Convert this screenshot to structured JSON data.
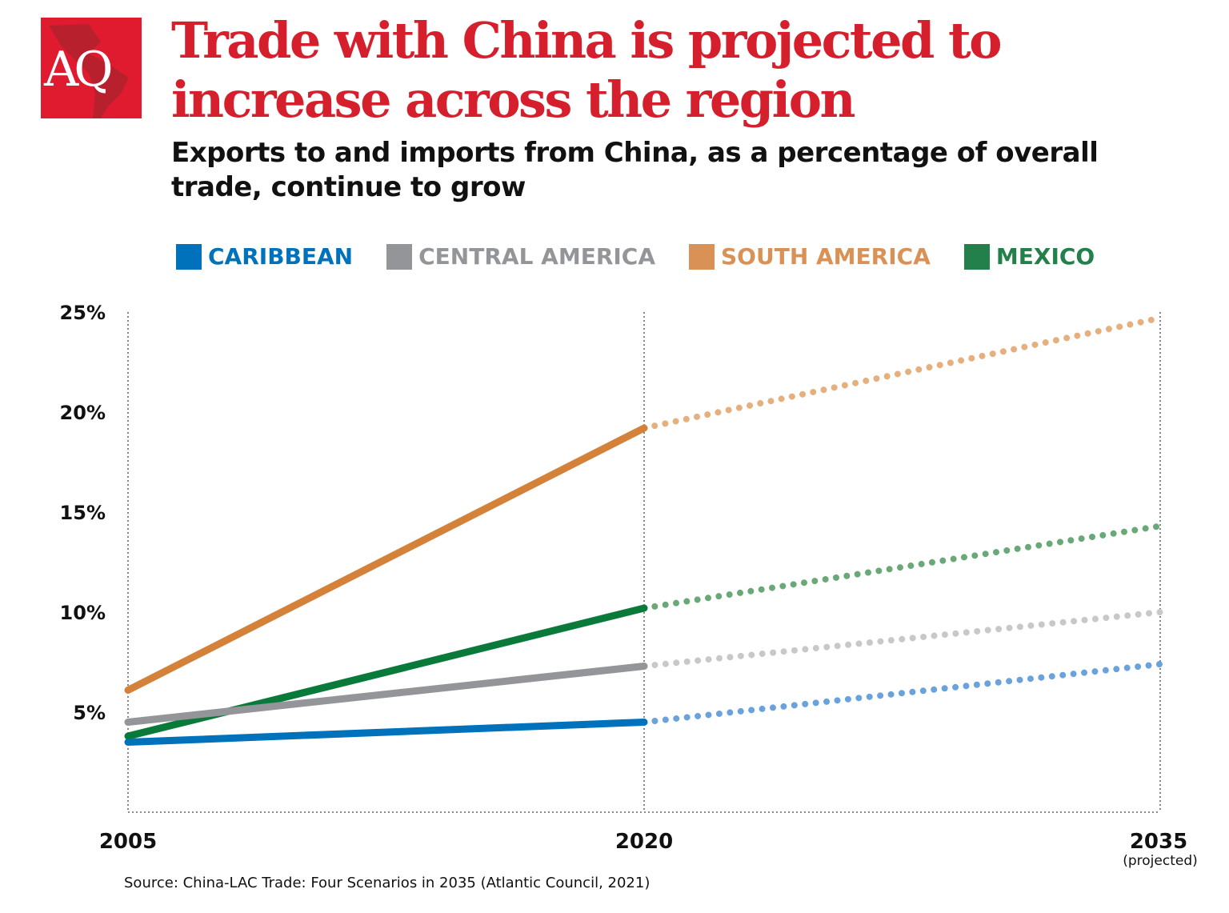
{
  "logo": {
    "text": "AQ",
    "color": "#e11b2f"
  },
  "title": "Trade with China is projected to increase across the region",
  "subtitle": "Exports to and imports from China, as a percentage of overall trade, continue to grow",
  "source": "Source: China-LAC Trade: Four Scenarios in 2035 (Atlantic Council, 2021)",
  "chart_data": {
    "type": "line",
    "x": [
      2005,
      2020,
      2035
    ],
    "x_tick_labels": [
      "2005",
      "2020",
      "2035"
    ],
    "x_tick_sublabels": [
      "",
      "",
      "(projected)"
    ],
    "projected_from": 2020,
    "ylim": [
      0,
      25
    ],
    "y_ticks": [
      5,
      10,
      15,
      20,
      25
    ],
    "y_tick_labels": [
      "5%",
      "10%",
      "15%",
      "20%",
      "25%"
    ],
    "legend_placement": "top",
    "series": [
      {
        "name": "CARIBBEAN",
        "values": [
          3.5,
          4.5,
          7.4
        ],
        "color": "#0072bc",
        "projected_color": "#6aa3dc",
        "legend_color": "#0072bc"
      },
      {
        "name": "CENTRAL AMERICA",
        "values": [
          4.5,
          7.3,
          10.0
        ],
        "color": "#939598",
        "projected_color": "#c8c8c9",
        "legend_color": "#939598"
      },
      {
        "name": "SOUTH AMERICA",
        "values": [
          6.1,
          19.2,
          24.7
        ],
        "color": "#d4813a",
        "projected_color": "#e6b07e",
        "legend_color": "#d99155"
      },
      {
        "name": "MEXICO",
        "values": [
          3.8,
          10.2,
          14.3
        ],
        "color": "#0a7a3a",
        "projected_color": "#6aa878",
        "legend_color": "#24804a"
      }
    ]
  }
}
